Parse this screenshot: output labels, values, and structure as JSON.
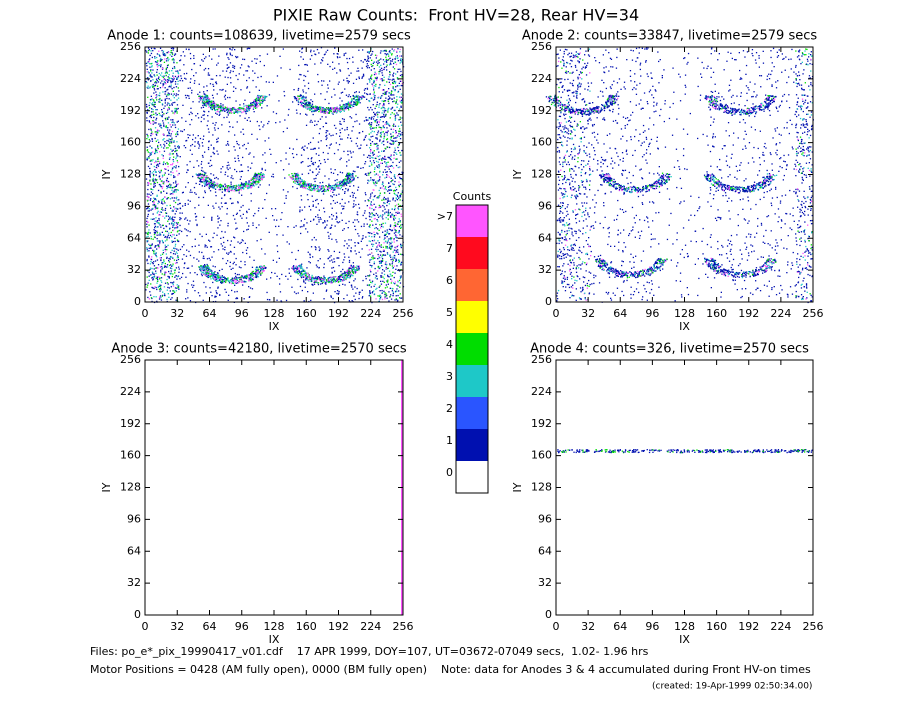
{
  "title": "PIXIE Raw Counts:  Front HV=28, Rear HV=34",
  "panels": [
    {
      "title": "Anode 1: counts=108639, livetime=2579 secs",
      "xlabel": "IX",
      "ylabel": "IY",
      "xlim": [
        0,
        256
      ],
      "ylim": [
        0,
        256
      ],
      "xticks": [
        0,
        32,
        64,
        96,
        128,
        160,
        192,
        224,
        256
      ],
      "yticks": [
        0,
        32,
        64,
        96,
        128,
        160,
        192,
        224,
        256
      ]
    },
    {
      "title": "Anode 2: counts=33847, livetime=2579 secs",
      "xlabel": "IX",
      "ylabel": "IY",
      "xlim": [
        0,
        256
      ],
      "ylim": [
        0,
        256
      ],
      "xticks": [
        0,
        32,
        64,
        96,
        128,
        160,
        192,
        224,
        256
      ],
      "yticks": [
        0,
        32,
        64,
        96,
        128,
        160,
        192,
        224,
        256
      ]
    },
    {
      "title": "Anode 3: counts=42180, livetime=2570 secs",
      "xlabel": "IX",
      "ylabel": "IY",
      "xlim": [
        0,
        256
      ],
      "ylim": [
        0,
        256
      ],
      "xticks": [
        0,
        32,
        64,
        96,
        128,
        160,
        192,
        224,
        256
      ],
      "yticks": [
        0,
        32,
        64,
        96,
        128,
        160,
        192,
        224,
        256
      ]
    },
    {
      "title": "Anode 4: counts=326, livetime=2570 secs",
      "xlabel": "IX",
      "ylabel": "IY",
      "xlim": [
        0,
        256
      ],
      "ylim": [
        0,
        256
      ],
      "xticks": [
        0,
        32,
        64,
        96,
        128,
        160,
        192,
        224,
        256
      ],
      "yticks": [
        0,
        32,
        64,
        96,
        128,
        160,
        192,
        224,
        256
      ]
    }
  ],
  "colorbar": {
    "title": "Counts",
    "labels": [
      ">7",
      "7",
      "6",
      "5",
      "4",
      "3",
      "2",
      "1",
      "0"
    ],
    "colors": [
      "#ff55ff",
      "#ff0a1e",
      "#ff6633",
      "#ffff00",
      "#00dd00",
      "#1ec8c8",
      "#2a55ff",
      "#0010b0",
      "#ffffff"
    ]
  },
  "footer": [
    "Files: po_e*_pix_19990417_v01.cdf    17 APR 1999, DOY=107, UT=03672-07049 secs,  1.02- 1.96 hrs",
    "Motor Positions = 0428 (AM fully open), 0000 (BM fully open)    Note: data for Anodes 3 & 4 accumulated during Front HV-on times"
  ],
  "created": "(created: 19-Apr-1999 02:50:34.00)"
}
